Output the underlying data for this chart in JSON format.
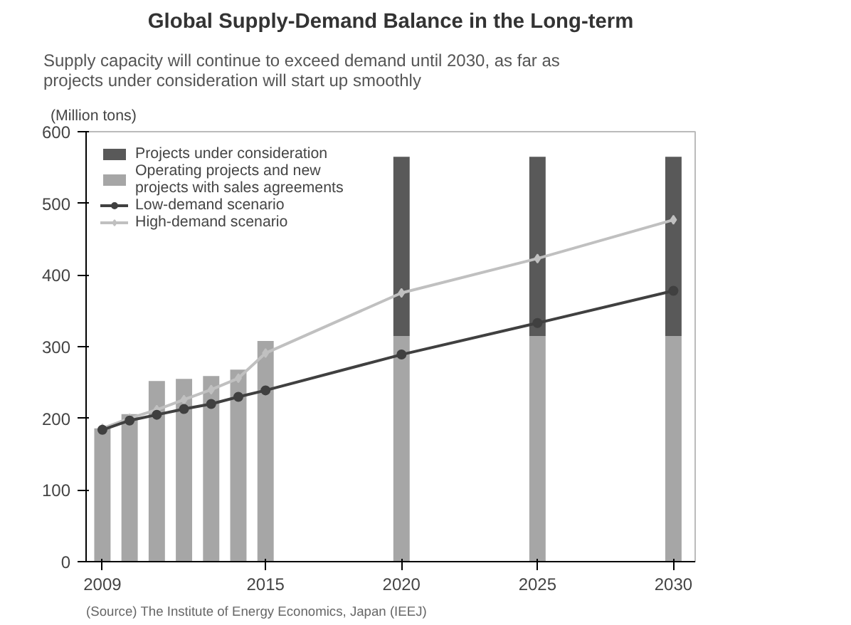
{
  "chart_data": {
    "type": "bar",
    "title": "Global Supply-Demand Balance in the Long-term",
    "subtitle": "Supply capacity will continue to exceed demand until 2030, as far as projects under consideration will start up smoothly",
    "ylabel": "(Million tons)",
    "x": [
      2009,
      2010,
      2011,
      2012,
      2013,
      2014,
      2015,
      2020,
      2025,
      2030
    ],
    "xlim": [
      2008.4,
      2030.8
    ],
    "xticks": [
      2009,
      2015,
      2020,
      2025,
      2030
    ],
    "ylim": [
      0,
      600
    ],
    "yticks": [
      0,
      100,
      200,
      300,
      400,
      500,
      600
    ],
    "stacked": true,
    "grid": false,
    "legend": "top left",
    "series": [
      {
        "name": "Operating projects and new projects with sales agreements",
        "color": "#a6a6a6",
        "values": [
          186,
          206,
          252,
          255,
          259,
          268,
          308,
          315,
          315,
          315
        ]
      },
      {
        "name": "Projects under consideration",
        "color": "#595959",
        "values": [
          null,
          null,
          null,
          null,
          null,
          null,
          null,
          250,
          250,
          250
        ]
      },
      {
        "name": "Low-demand scenario",
        "type": "line",
        "marker": "circle",
        "color": "#404040",
        "values": [
          184,
          197,
          205,
          213,
          220,
          230,
          239,
          289,
          333,
          378
        ]
      },
      {
        "name": "High-demand scenario",
        "type": "line",
        "marker": "diamond",
        "color": "#c0c0c0",
        "values": [
          186,
          200,
          212,
          226,
          240,
          256,
          291,
          375,
          423,
          477
        ]
      }
    ],
    "annotations": [
      "(Source) The Institute of Energy Economics, Japan (IEEJ)"
    ]
  }
}
